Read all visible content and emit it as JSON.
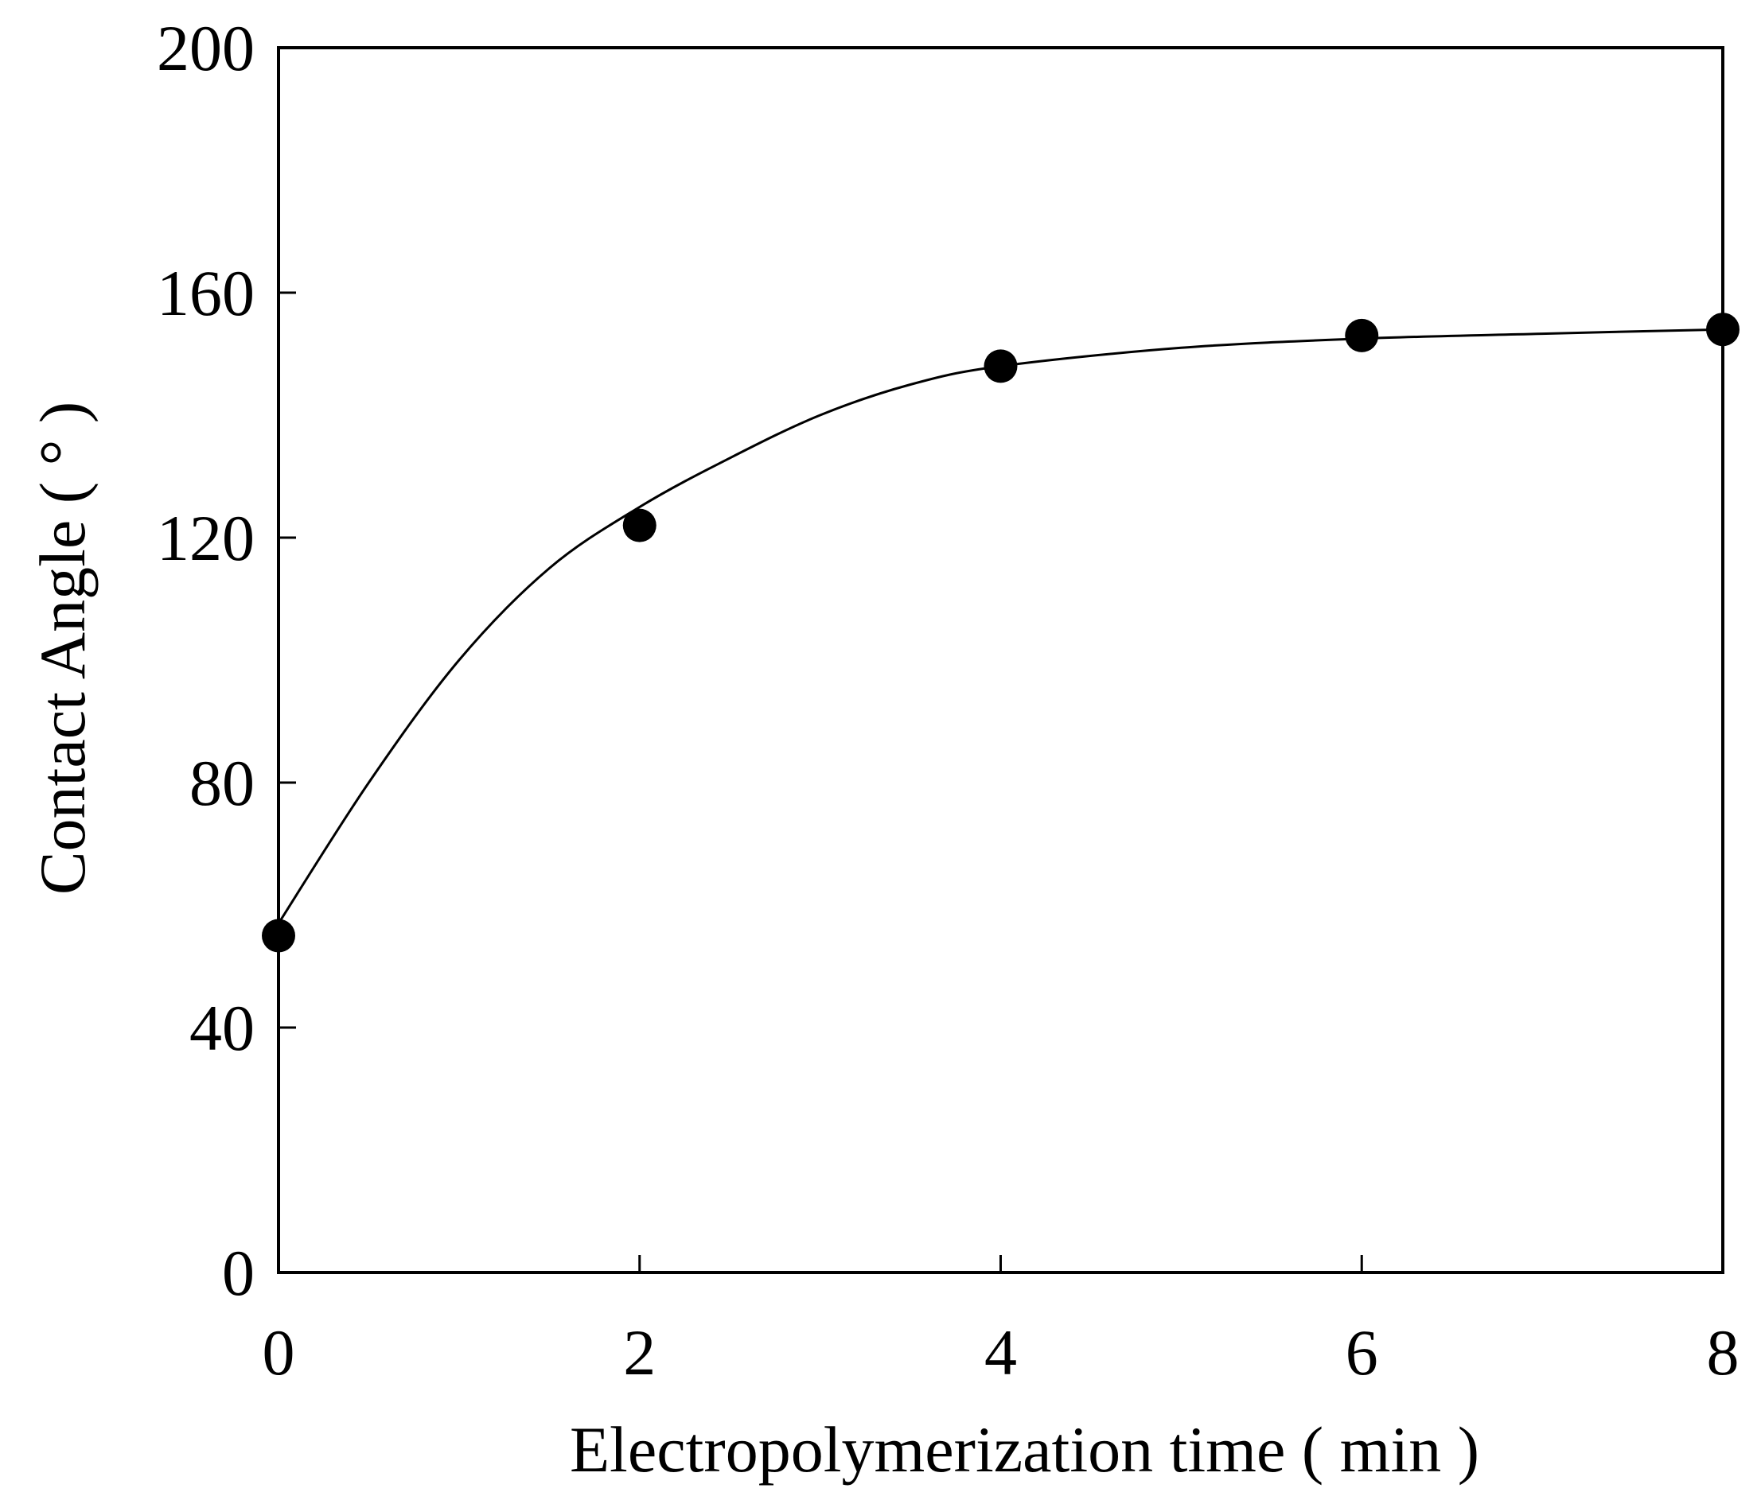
{
  "chart_data": {
    "type": "scatter",
    "title": "",
    "xlabel": "Electropolymerization time ( min )",
    "ylabel": "Contact Angle ( ° )",
    "xlim": [
      0,
      8
    ],
    "ylim": [
      0,
      200
    ],
    "xticks": [
      0,
      2,
      4,
      6,
      8
    ],
    "yticks": [
      0,
      40,
      80,
      120,
      160,
      200
    ],
    "xtick_labels": [
      "0",
      "2",
      "4",
      "6",
      "8"
    ],
    "ytick_labels": [
      "0",
      "40",
      "80",
      "120",
      "160",
      "200"
    ],
    "grid": false,
    "legend": "none",
    "series": [
      {
        "values_x": [
          0,
          2,
          4,
          6,
          8
        ],
        "values_y": [
          55,
          122,
          148,
          153,
          154
        ],
        "marker": "filled-circle",
        "color": "#000000"
      }
    ],
    "fit_curve": {
      "style": "smooth",
      "color": "#000000",
      "x": [
        0,
        0.5,
        1,
        1.5,
        2,
        2.5,
        3,
        3.5,
        4,
        5,
        6,
        7,
        8
      ],
      "y": [
        57,
        80,
        100,
        115,
        125,
        133,
        140,
        145,
        148,
        151,
        152.5,
        153.3,
        154
      ]
    }
  }
}
